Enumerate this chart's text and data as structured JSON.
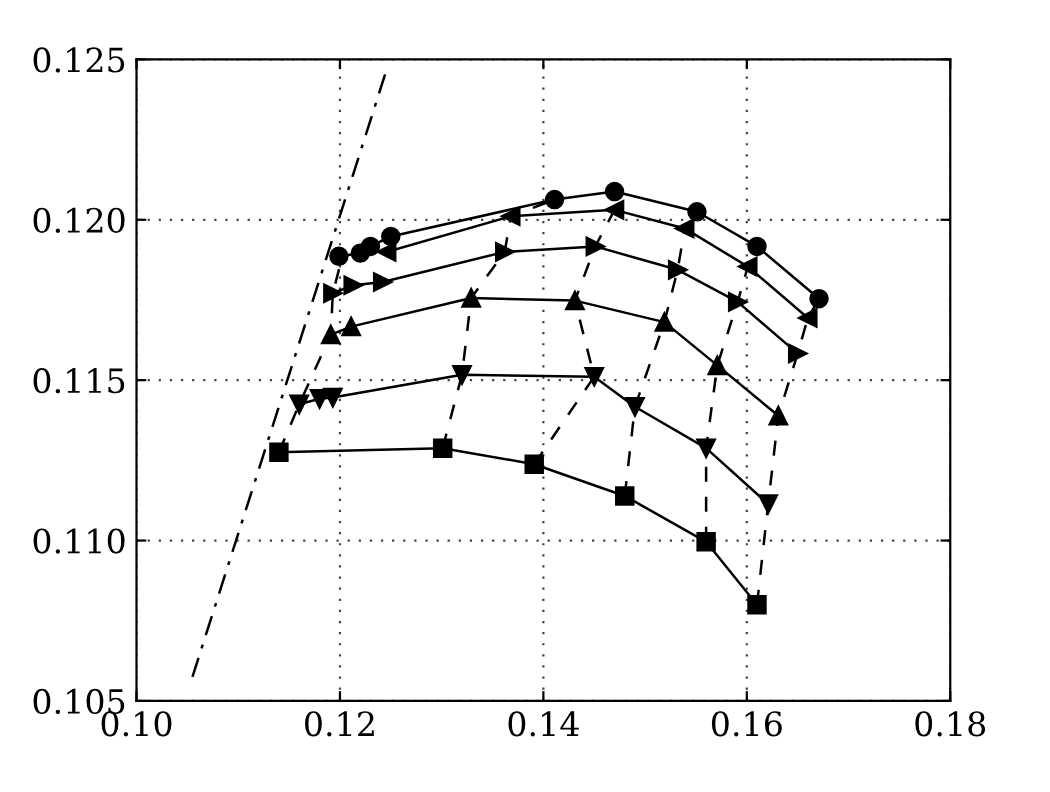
{
  "chart_data": {
    "type": "line",
    "xlim": [
      0.1,
      0.18
    ],
    "ylim": [
      0.105,
      0.125
    ],
    "xticks": [
      {
        "value": 0.1,
        "label": "0.10"
      },
      {
        "value": 0.12,
        "label": "0.12"
      },
      {
        "value": 0.14,
        "label": "0.14"
      },
      {
        "value": 0.16,
        "label": "0.16"
      },
      {
        "value": 0.18,
        "label": "0.18"
      }
    ],
    "yticks": [
      {
        "value": 0.105,
        "label": "0.105"
      },
      {
        "value": 0.11,
        "label": "0.110"
      },
      {
        "value": 0.115,
        "label": "0.115"
      },
      {
        "value": 0.12,
        "label": "0.120"
      },
      {
        "value": 0.125,
        "label": "0.125"
      }
    ],
    "grid": true,
    "legend": false,
    "series": [
      {
        "color": "#000000",
        "marker": "square",
        "x": [
          0.114,
          0.1301,
          0.1391,
          0.148,
          0.156,
          0.161
        ],
        "values": [
          0.11275,
          0.11288,
          0.11238,
          0.11139,
          0.10996,
          0.108
        ]
      },
      {
        "color": "#000000",
        "marker": "triangle_down",
        "x": [
          0.116,
          0.118,
          0.1193,
          0.132,
          0.145,
          0.149,
          0.156,
          0.1621
        ],
        "values": [
          0.11425,
          0.11442,
          0.11446,
          0.11517,
          0.11511,
          0.11417,
          0.11288,
          0.11114
        ]
      },
      {
        "color": "#000000",
        "marker": "triangle",
        "x": [
          0.1191,
          0.1211,
          0.1329,
          0.1431,
          0.1519,
          0.1571,
          0.1631
        ],
        "values": [
          0.11642,
          0.11667,
          0.11756,
          0.11748,
          0.11681,
          0.11546,
          0.11389
        ]
      },
      {
        "color": "#000000",
        "marker": "triangle_right",
        "x": [
          0.1193,
          0.1213,
          0.1242,
          0.1362,
          0.1451,
          0.1532,
          0.1591,
          0.165
        ],
        "values": [
          0.11771,
          0.11796,
          0.11806,
          0.119,
          0.11917,
          0.11844,
          0.11744,
          0.11583
        ]
      },
      {
        "color": "#000000",
        "marker": "triangle_left",
        "x": [
          0.1246,
          0.1368,
          0.147,
          0.1539,
          0.1601,
          0.166
        ],
        "values": [
          0.119,
          0.12011,
          0.12031,
          0.11973,
          0.11854,
          0.11694
        ]
      },
      {
        "color": "#000000",
        "marker": "circle",
        "x": [
          0.1199,
          0.122,
          0.123,
          0.125,
          0.1411,
          0.147,
          0.1551,
          0.161,
          0.1671
        ],
        "values": [
          0.11886,
          0.11896,
          0.11917,
          0.11948,
          0.12063,
          0.12088,
          0.12025,
          0.11917,
          0.11754
        ]
      },
      {
        "color": "#000000",
        "marker": "none",
        "line_style": "dashed",
        "x": [
          0.114,
          0.116,
          0.1191,
          0.1193,
          0.1201,
          0.1199
        ],
        "values": [
          0.11275,
          0.11425,
          0.11642,
          0.11771,
          0.11869,
          0.11886
        ]
      },
      {
        "color": "#000000",
        "marker": "none",
        "line_style": "dashed",
        "x": [
          0.1301,
          0.132,
          0.1329,
          0.1362,
          0.1368,
          0.1411
        ],
        "values": [
          0.11288,
          0.11517,
          0.11756,
          0.119,
          0.12011,
          0.12063
        ]
      },
      {
        "color": "#000000",
        "marker": "none",
        "line_style": "dashed",
        "x": [
          0.1391,
          0.145,
          0.1431,
          0.1451,
          0.147,
          0.147
        ],
        "values": [
          0.11238,
          0.11511,
          0.11748,
          0.11917,
          0.12031,
          0.12088
        ]
      },
      {
        "color": "#000000",
        "marker": "none",
        "line_style": "dashed",
        "x": [
          0.148,
          0.149,
          0.1519,
          0.1532,
          0.1539,
          0.1551
        ],
        "values": [
          0.11139,
          0.11417,
          0.11681,
          0.11844,
          0.11973,
          0.12025
        ]
      },
      {
        "color": "#000000",
        "marker": "none",
        "line_style": "dashed",
        "x": [
          0.156,
          0.156,
          0.1571,
          0.1591,
          0.1601,
          0.161
        ],
        "values": [
          0.10996,
          0.11288,
          0.11546,
          0.11744,
          0.11854,
          0.11917
        ]
      },
      {
        "color": "#000000",
        "marker": "none",
        "line_style": "dashed",
        "x": [
          0.161,
          0.1621,
          0.1631,
          0.165,
          0.166,
          0.1671
        ],
        "values": [
          0.108,
          0.11114,
          0.11389,
          0.11583,
          0.11694,
          0.11754
        ]
      },
      {
        "color": "#000000",
        "marker": "none",
        "line_style": "dashdot",
        "x": [
          0.1055,
          0.1246
        ],
        "values": [
          0.10575,
          0.12469
        ]
      }
    ]
  }
}
